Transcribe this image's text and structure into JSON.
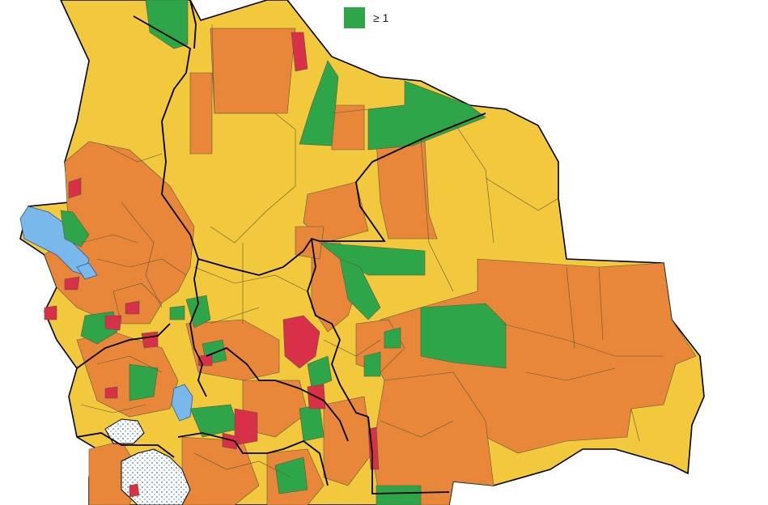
{
  "colors": {
    "yellow": "#f2c93d",
    "orange": "#e8873a",
    "red": "#d9304a",
    "green": "#2fa54a",
    "water": "#79b8ea",
    "salt": "#ffffff",
    "border": "#000000",
    "line": "#5a5a3a"
  },
  "legend": {
    "label": "≥ 1",
    "color": "#2fa54a"
  }
}
